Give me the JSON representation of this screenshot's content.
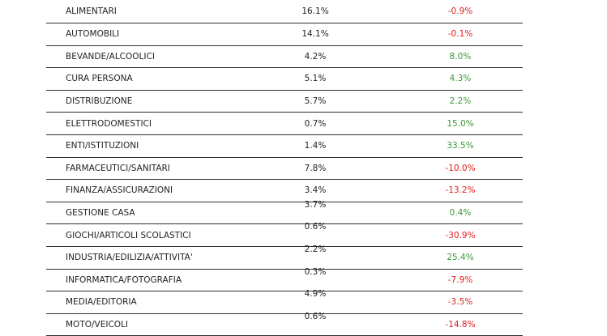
{
  "colors": {
    "positive": "#3a9a3a",
    "negative": "#e02020",
    "text": "#222222",
    "divider": "#2e2e2e"
  },
  "rows": [
    {
      "category": "ALIMENTARI",
      "share": "16.1%",
      "change": "-0.9%",
      "trend": "neg"
    },
    {
      "category": "AUTOMOBILI",
      "share": "14.1%",
      "change": "-0.1%",
      "trend": "neg"
    },
    {
      "category": "BEVANDE/ALCOOLICI",
      "share": "4.2%",
      "change": "8.0%",
      "trend": "pos"
    },
    {
      "category": "CURA PERSONA",
      "share": "5.1%",
      "change": "4.3%",
      "trend": "pos"
    },
    {
      "category": "DISTRIBUZIONE",
      "share": "5.7%",
      "change": "2.2%",
      "trend": "pos"
    },
    {
      "category": "ELETTRODOMESTICI",
      "share": "0.7%",
      "change": "15.0%",
      "trend": "pos"
    },
    {
      "category": "ENTI/ISTITUZIONI",
      "share": "1.4%",
      "change": "33.5%",
      "trend": "pos"
    },
    {
      "category": "FARMACEUTICI/SANITARI",
      "share": "7.8%",
      "change": "-10.0%",
      "trend": "neg"
    },
    {
      "category": "FINANZA/ASSICURAZIONI",
      "share": "3.4%",
      "change": "-13.2%",
      "trend": "neg"
    },
    {
      "category": "GESTIONE CASA",
      "share": "3.7%",
      "change": "0.4%",
      "trend": "pos"
    },
    {
      "category": "GIOCHI/ARTICOLI SCOLASTICI",
      "share": "0.6%",
      "change": "-30.9%",
      "trend": "neg"
    },
    {
      "category": "INDUSTRIA/EDILIZIA/ATTIVITA'",
      "share": "2.2%",
      "change": "25.4%",
      "trend": "pos"
    },
    {
      "category": "INFORMATICA/FOTOGRAFIA",
      "share": "0.3%",
      "change": "-7.9%",
      "trend": "neg"
    },
    {
      "category": "MEDIA/EDITORIA",
      "share": "4.9%",
      "change": "-3.5%",
      "trend": "neg"
    },
    {
      "category": "MOTO/VEICOLI",
      "share": "0.6%",
      "change": "-14.8%",
      "trend": "neg"
    }
  ]
}
